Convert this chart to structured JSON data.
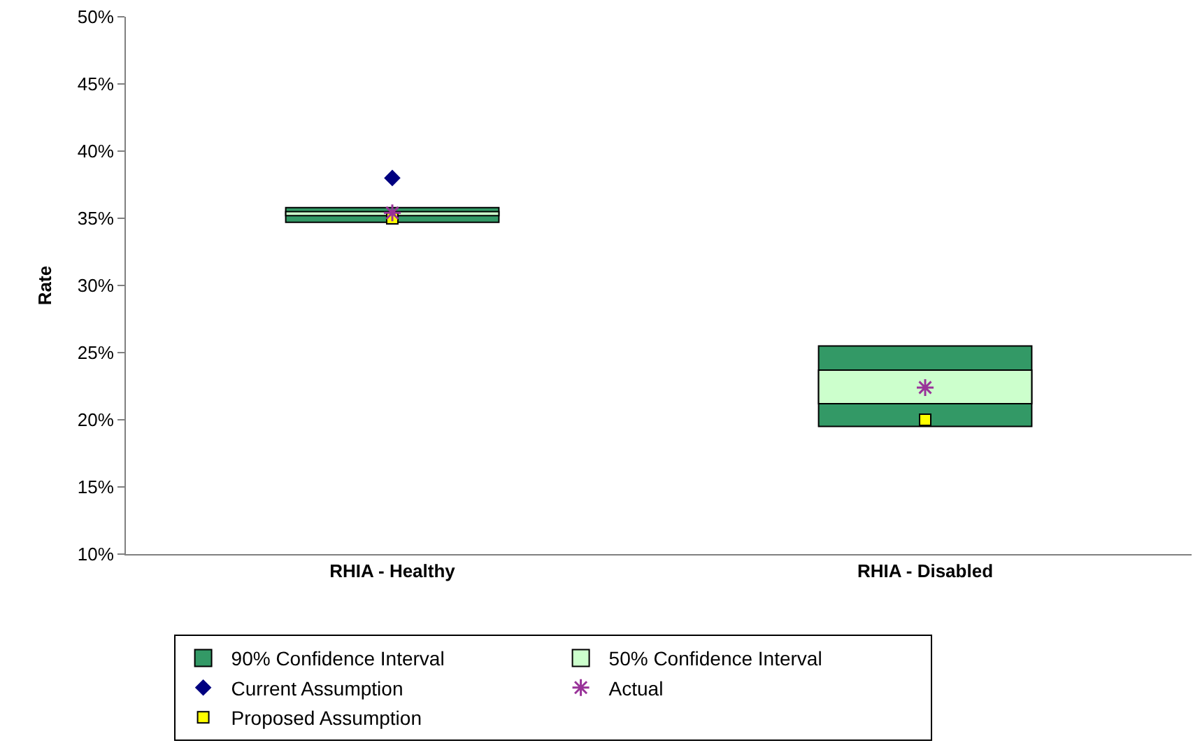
{
  "chart_data": {
    "type": "bar",
    "ylabel": "Rate",
    "categories": [
      "RHIA - Healthy",
      "RHIA - Disabled"
    ],
    "series": [
      {
        "name": "90% Confidence Interval",
        "color": "#339966",
        "base": [
          34.7,
          19.5
        ],
        "values": [
          1.1,
          6.0
        ]
      },
      {
        "name": "50% Confidence Interval",
        "color": "#ccffcc",
        "base": [
          35.2,
          21.2
        ],
        "values": [
          0.3,
          2.5
        ]
      },
      {
        "type": "scatter",
        "name": "Current Assumption",
        "color": "#000080",
        "marker": "diamond",
        "x": [
          "RHIA - Healthy"
        ],
        "values": [
          38.0
        ]
      },
      {
        "type": "scatter",
        "name": "Actual",
        "color": "#993399",
        "marker": "cross",
        "x": [
          "RHIA - Healthy",
          "RHIA - Disabled"
        ],
        "values": [
          35.4,
          22.4
        ]
      },
      {
        "type": "scatter",
        "name": "Proposed Assumption",
        "color": "#ffff00",
        "marker": "square",
        "x": [
          "RHIA - Healthy",
          "RHIA - Disabled"
        ],
        "values": [
          35.0,
          20.0
        ]
      }
    ],
    "ylim": [
      10,
      50
    ],
    "yticks": [
      {
        "value": 10,
        "label": "10%"
      },
      {
        "value": 15,
        "label": "15%"
      },
      {
        "value": 20,
        "label": "20%"
      },
      {
        "value": 25,
        "label": "25%"
      },
      {
        "value": 30,
        "label": "30%"
      },
      {
        "value": 35,
        "label": "35%"
      },
      {
        "value": 40,
        "label": "40%"
      },
      {
        "value": 45,
        "label": "45%"
      },
      {
        "value": 50,
        "label": "50%"
      }
    ],
    "legend": "bottom"
  }
}
